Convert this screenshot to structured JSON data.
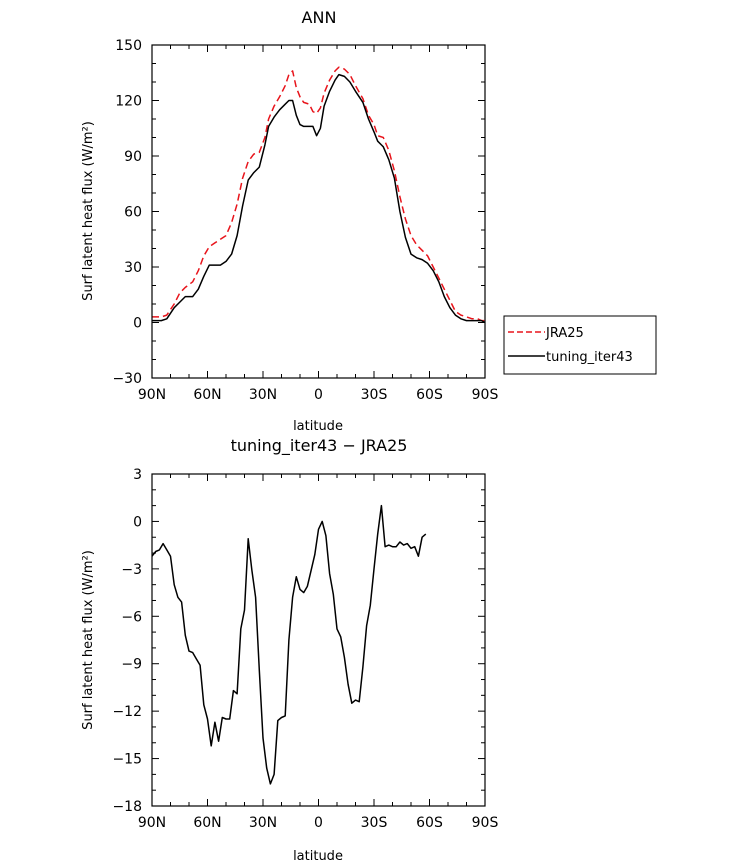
{
  "chart_data": [
    {
      "type": "line",
      "title": "ANN",
      "xlabel": "latitude",
      "ylabel": "Surf latent heat flux (W/m²)",
      "xlim": [
        90,
        -90
      ],
      "ylim": [
        -30,
        150
      ],
      "x_ticks": [
        {
          "value": 90,
          "label": "90N"
        },
        {
          "value": 60,
          "label": "60N"
        },
        {
          "value": 30,
          "label": "30N"
        },
        {
          "value": 0,
          "label": "0"
        },
        {
          "value": -30,
          "label": "30S"
        },
        {
          "value": -60,
          "label": "60S"
        },
        {
          "value": -90,
          "label": "90S"
        }
      ],
      "y_ticks": [
        -30,
        0,
        30,
        60,
        90,
        120,
        150
      ],
      "legend": {
        "placement": "right"
      },
      "series": [
        {
          "name": "JRA25",
          "color": "#e8141b",
          "dash": "dashed",
          "points": [
            [
              90,
              3
            ],
            [
              85,
              3
            ],
            [
              82,
              4
            ],
            [
              78,
              10
            ],
            [
              75,
              16
            ],
            [
              72,
              19
            ],
            [
              68,
              22
            ],
            [
              65,
              28
            ],
            [
              62,
              36
            ],
            [
              59,
              41
            ],
            [
              56,
              43
            ],
            [
              53,
              45
            ],
            [
              50,
              47
            ],
            [
              47,
              54
            ],
            [
              44,
              64
            ],
            [
              41,
              78
            ],
            [
              38,
              87
            ],
            [
              35,
              91
            ],
            [
              32,
              92
            ],
            [
              29,
              100
            ],
            [
              27,
              110
            ],
            [
              24,
              117
            ],
            [
              21,
              122
            ],
            [
              18,
              128
            ],
            [
              16,
              134
            ],
            [
              14,
              136
            ],
            [
              12,
              127
            ],
            [
              10,
              122
            ],
            [
              8,
              119
            ],
            [
              5,
              118
            ],
            [
              3,
              114
            ],
            [
              1,
              113
            ],
            [
              -1,
              116
            ],
            [
              -3,
              124
            ],
            [
              -6,
              131
            ],
            [
              -9,
              136
            ],
            [
              -11,
              138
            ],
            [
              -14,
              137
            ],
            [
              -17,
              134
            ],
            [
              -20,
              128
            ],
            [
              -24,
              121
            ],
            [
              -27,
              112
            ],
            [
              -30,
              107
            ],
            [
              -32,
              101
            ],
            [
              -35,
              100
            ],
            [
              -38,
              93
            ],
            [
              -41,
              82
            ],
            [
              -44,
              68
            ],
            [
              -47,
              56
            ],
            [
              -50,
              47
            ],
            [
              -53,
              42
            ],
            [
              -56,
              39
            ],
            [
              -59,
              36
            ],
            [
              -62,
              30
            ],
            [
              -65,
              24
            ],
            [
              -68,
              18
            ],
            [
              -71,
              12
            ],
            [
              -74,
              6
            ],
            [
              -77,
              4
            ],
            [
              -80,
              3
            ],
            [
              -83,
              2
            ],
            [
              -86,
              2
            ],
            [
              -88,
              1
            ],
            [
              -90,
              1
            ]
          ]
        },
        {
          "name": "tuning_iter43",
          "color": "#000000",
          "dash": "solid",
          "points": [
            [
              90,
              1
            ],
            [
              85,
              1
            ],
            [
              82,
              2
            ],
            [
              78,
              8
            ],
            [
              75,
              11
            ],
            [
              72,
              14
            ],
            [
              68,
              14
            ],
            [
              65,
              18
            ],
            [
              62,
              25
            ],
            [
              59,
              31
            ],
            [
              56,
              31
            ],
            [
              53,
              31
            ],
            [
              50,
              33
            ],
            [
              47,
              37
            ],
            [
              44,
              47
            ],
            [
              41,
              63
            ],
            [
              38,
              77
            ],
            [
              35,
              81
            ],
            [
              32,
              84
            ],
            [
              29,
              96
            ],
            [
              27,
              106
            ],
            [
              24,
              111
            ],
            [
              21,
              115
            ],
            [
              18,
              118
            ],
            [
              16,
              120
            ],
            [
              14,
              120
            ],
            [
              12,
              112
            ],
            [
              10,
              107
            ],
            [
              8,
              106
            ],
            [
              5,
              106
            ],
            [
              3,
              106
            ],
            [
              1,
              101
            ],
            [
              -1,
              105
            ],
            [
              -3,
              117
            ],
            [
              -6,
              125
            ],
            [
              -9,
              131
            ],
            [
              -11,
              134
            ],
            [
              -14,
              133
            ],
            [
              -17,
              130
            ],
            [
              -20,
              125
            ],
            [
              -24,
              119
            ],
            [
              -27,
              110
            ],
            [
              -30,
              103
            ],
            [
              -32,
              98
            ],
            [
              -35,
              95
            ],
            [
              -38,
              88
            ],
            [
              -41,
              78
            ],
            [
              -44,
              60
            ],
            [
              -47,
              46
            ],
            [
              -50,
              37
            ],
            [
              -53,
              35
            ],
            [
              -56,
              34
            ],
            [
              -59,
              32
            ],
            [
              -62,
              28
            ],
            [
              -65,
              22
            ],
            [
              -68,
              14
            ],
            [
              -71,
              8
            ],
            [
              -74,
              4
            ],
            [
              -77,
              2
            ],
            [
              -80,
              1
            ],
            [
              -83,
              1
            ],
            [
              -86,
              1
            ],
            [
              -88,
              1
            ],
            [
              -90,
              0
            ]
          ]
        }
      ]
    },
    {
      "type": "line",
      "title": "tuning_iter43 − JRA25",
      "xlabel": "latitude",
      "ylabel": "Surf latent heat flux (W/m²)",
      "xlim": [
        90,
        -90
      ],
      "ylim": [
        -18,
        3
      ],
      "x_ticks": [
        {
          "value": 90,
          "label": "90N"
        },
        {
          "value": 60,
          "label": "60N"
        },
        {
          "value": 30,
          "label": "30N"
        },
        {
          "value": 0,
          "label": "0"
        },
        {
          "value": -30,
          "label": "30S"
        },
        {
          "value": -60,
          "label": "60S"
        },
        {
          "value": -90,
          "label": "90S"
        }
      ],
      "y_ticks": [
        3,
        0,
        -3,
        -6,
        -9,
        -12,
        -15,
        -18
      ],
      "series": [
        {
          "color": "#000000",
          "dash": "solid",
          "points": [
            [
              90,
              -2.2
            ],
            [
              88,
              -1.9
            ],
            [
              86,
              -1.8
            ],
            [
              84,
              -1.4
            ],
            [
              82,
              -1.8
            ],
            [
              80,
              -2.2
            ],
            [
              78,
              -4
            ],
            [
              76,
              -4.8
            ],
            [
              74,
              -5.1
            ],
            [
              72,
              -7.2
            ],
            [
              70,
              -8.2
            ],
            [
              68,
              -8.3
            ],
            [
              66,
              -8.7
            ],
            [
              64,
              -9.1
            ],
            [
              62,
              -11.6
            ],
            [
              60,
              -12.5
            ],
            [
              58,
              -14.2
            ],
            [
              56,
              -12.7
            ],
            [
              54,
              -13.9
            ],
            [
              52,
              -12.4
            ],
            [
              50,
              -12.5
            ],
            [
              48,
              -12.5
            ],
            [
              46,
              -10.7
            ],
            [
              44,
              -10.9
            ],
            [
              42,
              -6.8
            ],
            [
              40,
              -5.6
            ],
            [
              38,
              -1.1
            ],
            [
              36,
              -3.1
            ],
            [
              34,
              -4.8
            ],
            [
              32,
              -9.4
            ],
            [
              30,
              -13.7
            ],
            [
              28,
              -15.6
            ],
            [
              26,
              -16.6
            ],
            [
              24,
              -16.0
            ],
            [
              22,
              -12.6
            ],
            [
              20,
              -12.4
            ],
            [
              18,
              -12.3
            ],
            [
              16,
              -7.5
            ],
            [
              14,
              -4.8
            ],
            [
              12,
              -3.5
            ],
            [
              10,
              -4.3
            ],
            [
              8,
              -4.5
            ],
            [
              6,
              -4.1
            ],
            [
              4,
              -3.1
            ],
            [
              2,
              -2.1
            ],
            [
              0,
              -0.5
            ],
            [
              -2,
              0
            ],
            [
              -4,
              -0.9
            ],
            [
              -6,
              -3.3
            ],
            [
              -8,
              -4.6
            ],
            [
              -10,
              -6.8
            ],
            [
              -12,
              -7.3
            ],
            [
              -14,
              -8.6
            ],
            [
              -16,
              -10.3
            ],
            [
              -18,
              -11.5
            ],
            [
              -20,
              -11.3
            ],
            [
              -22,
              -11.4
            ],
            [
              -24,
              -9.2
            ],
            [
              -26,
              -6.6
            ],
            [
              -28,
              -5.3
            ],
            [
              -30,
              -3
            ],
            [
              -32,
              -0.8
            ],
            [
              -34,
              1
            ],
            [
              -36,
              -1.6
            ],
            [
              -38,
              -1.5
            ],
            [
              -40,
              -1.6
            ],
            [
              -42,
              -1.6
            ],
            [
              -44,
              -1.3
            ],
            [
              -46,
              -1.5
            ],
            [
              -48,
              -1.4
            ],
            [
              -50,
              -1.7
            ],
            [
              -52,
              -1.6
            ],
            [
              -54,
              -2.2
            ],
            [
              -56,
              -1
            ],
            [
              -58,
              -0.8
            ]
          ]
        }
      ]
    }
  ]
}
